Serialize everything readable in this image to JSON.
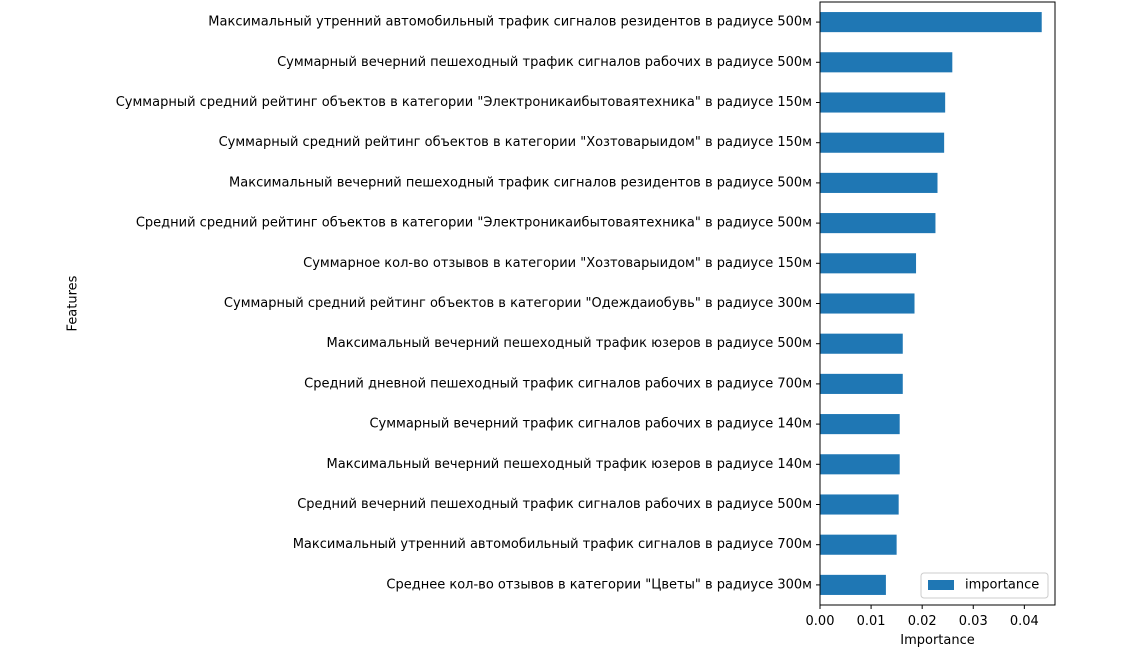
{
  "chart_data": {
    "type": "bar",
    "orientation": "horizontal",
    "xlabel": "Importance",
    "ylabel": "Features",
    "xlim": [
      0,
      0.046
    ],
    "xticks": [
      0.0,
      0.01,
      0.02,
      0.03,
      0.04
    ],
    "xtick_labels": [
      "0.00",
      "0.01",
      "0.02",
      "0.03",
      "0.04"
    ],
    "grid": false,
    "legend_position": "bottom-right",
    "categories": [
      "Максимальный утренний автомобильный трафик сигналов резидентов в радиусе 500м",
      "Суммарный вечерний пешеходный трафик сигналов рабочих в радиусе 500м",
      "Суммарный средний рейтинг объектов в категории \"Электроникаибытоваятехника\" в радиусе 150м",
      "Суммарный средний рейтинг объектов в категории \"Хозтоварыидом\" в радиусе 150м",
      "Максимальный вечерний пешеходный трафик сигналов резидентов в радиусе 500м",
      "Средний средний рейтинг объектов в категории \"Электроникаибытоваятехника\" в радиусе 500м",
      "Суммарное кол-во отзывов в категории \"Хозтоварыидом\" в радиусе 150м",
      "Суммарный средний рейтинг объектов в категории \"Одеждаиобувь\" в радиусе 300м",
      "Максимальный вечерний пешеходный трафик юзеров в радиусе 500м",
      "Средний дневной пешеходный трафик сигналов рабочих в радиусе 700м",
      "Суммарный вечерний трафик сигналов рабочих в радиусе 140м",
      "Максимальный вечерний пешеходный трафик юзеров в радиусе 140м",
      "Средний вечерний пешеходный трафик сигналов рабочих в радиусе 500м",
      "Максимальный утренний автомобильный трафик сигналов в радиусе 700м",
      "Среднее кол-во отзывов в категории \"Цветы\" в радиусе 300м"
    ],
    "series": [
      {
        "name": "importance",
        "color": "#1f77b4",
        "values": [
          0.0434,
          0.0259,
          0.0245,
          0.0243,
          0.023,
          0.0226,
          0.0188,
          0.0185,
          0.0162,
          0.0162,
          0.0156,
          0.0156,
          0.0154,
          0.015,
          0.0129
        ]
      }
    ]
  }
}
